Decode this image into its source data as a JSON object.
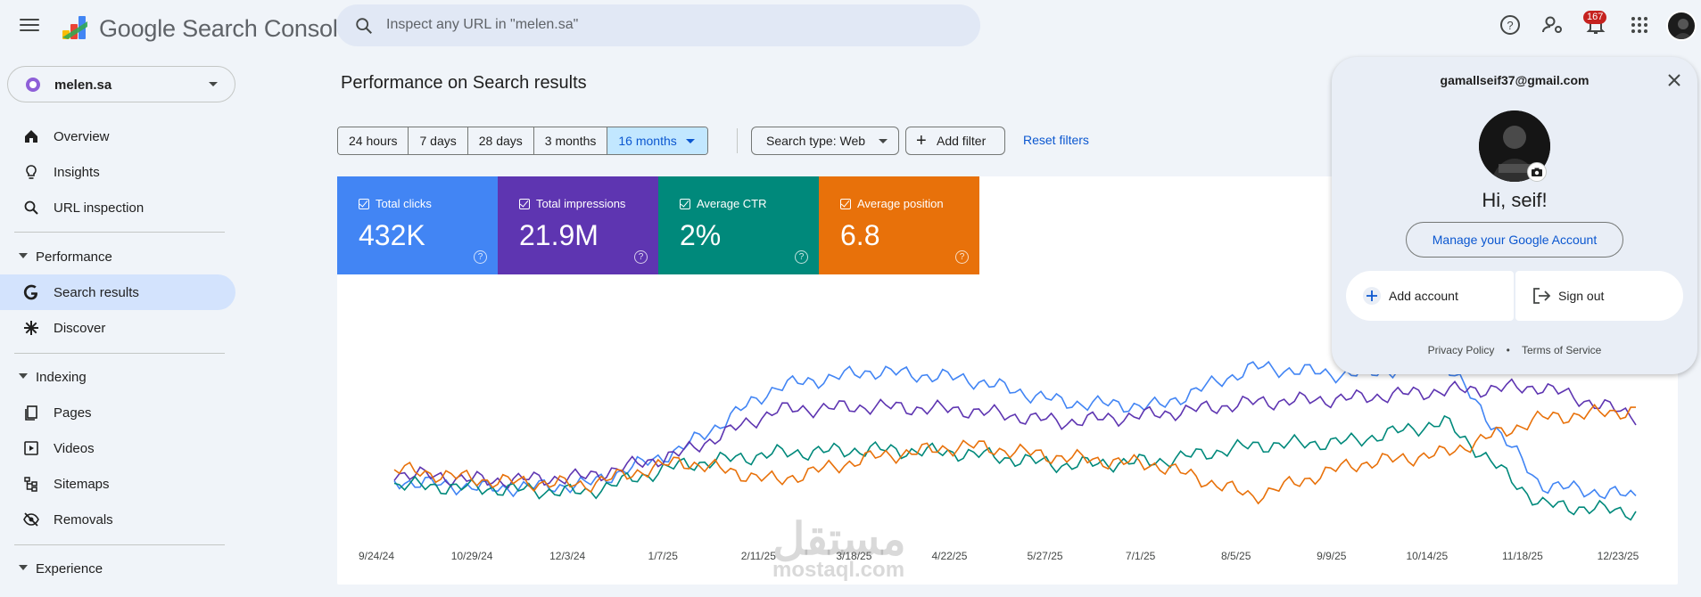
{
  "app": {
    "title": "Google Search Console",
    "search_placeholder": "Inspect any URL in \"melen.sa\"",
    "notification_count": "167"
  },
  "property": {
    "name": "melen.sa"
  },
  "nav": {
    "items_top": [
      {
        "label": "Overview",
        "icon": "home-icon"
      },
      {
        "label": "Insights",
        "icon": "lightbulb-icon"
      },
      {
        "label": "URL inspection",
        "icon": "search-icon"
      }
    ],
    "performance": {
      "label": "Performance",
      "items": [
        {
          "label": "Search results",
          "icon": "google-g-icon",
          "active": true
        },
        {
          "label": "Discover",
          "icon": "asterisk-icon"
        }
      ]
    },
    "indexing": {
      "label": "Indexing",
      "items": [
        {
          "label": "Pages",
          "icon": "pages-icon"
        },
        {
          "label": "Videos",
          "icon": "video-icon"
        },
        {
          "label": "Sitemaps",
          "icon": "sitemap-icon"
        },
        {
          "label": "Removals",
          "icon": "eye-off-icon"
        }
      ]
    },
    "experience": {
      "label": "Experience"
    }
  },
  "main": {
    "title": "Performance on Search results",
    "date_ranges": [
      "24 hours",
      "7 days",
      "28 days",
      "3 months",
      "16 months"
    ],
    "selected_range": "16 months",
    "search_type": "Search type: Web",
    "add_filter": "Add filter",
    "reset_filters": "Reset filters"
  },
  "metrics": [
    {
      "title": "Total clicks",
      "value": "432K",
      "color": "#4285f4"
    },
    {
      "title": "Total impressions",
      "value": "21.9M",
      "color": "#5e35b1"
    },
    {
      "title": "Average CTR",
      "value": "2%",
      "color": "#00897b"
    },
    {
      "title": "Average position",
      "value": "6.8",
      "color": "#e8710a"
    }
  ],
  "chart_data": {
    "type": "line",
    "title": "",
    "xlabel": "",
    "ylabel": "",
    "x_ticks": [
      "9/24/24",
      "10/29/24",
      "12/3/24",
      "1/7/25",
      "2/11/25",
      "3/18/25",
      "4/22/25",
      "5/27/25",
      "7/1/25",
      "8/5/25",
      "9/9/25",
      "10/14/25",
      "11/18/25",
      "12/23/25"
    ],
    "grid": false,
    "legend": "none",
    "note_values": "relative (normalized 0-100) level per series, per tick, axes unlabeled",
    "series": [
      {
        "name": "Total clicks",
        "color": "#4285f4",
        "values": [
          22,
          18,
          20,
          38,
          70,
          78,
          74,
          62,
          60,
          80,
          76,
          82,
          20,
          14
        ]
      },
      {
        "name": "Total impressions",
        "color": "#5e35b1",
        "values": [
          26,
          22,
          24,
          36,
          58,
          60,
          58,
          52,
          56,
          62,
          64,
          68,
          70,
          55
        ]
      },
      {
        "name": "Average CTR",
        "color": "#00897b",
        "values": [
          20,
          18,
          16,
          30,
          36,
          38,
          36,
          30,
          32,
          40,
          42,
          52,
          10,
          6
        ]
      },
      {
        "name": "Average position",
        "color": "#e8710a",
        "values": [
          28,
          22,
          20,
          32,
          22,
          34,
          40,
          34,
          30,
          14,
          30,
          36,
          54,
          58
        ]
      }
    ]
  },
  "account": {
    "email": "gamallseif37@gmail.com",
    "greeting": "Hi, seif!",
    "manage_label": "Manage your Google Account",
    "add_account": "Add account",
    "sign_out": "Sign out",
    "privacy": "Privacy Policy",
    "dot": "•",
    "terms": "Terms of Service"
  },
  "watermark": {
    "arabic": "مستقل",
    "latin": "mostaql.com"
  }
}
